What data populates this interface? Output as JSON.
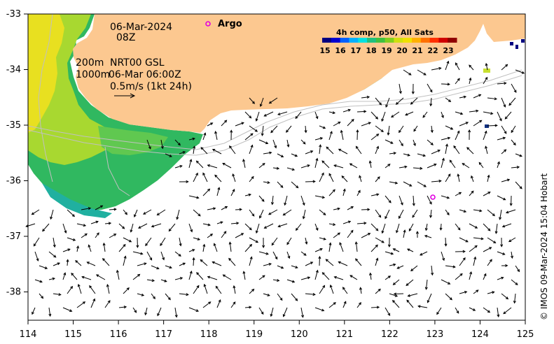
{
  "map": {
    "date_line": "06-Mar-2024",
    "time_line": "08Z",
    "depth_line_1": "200m",
    "depth_line_2": "1000m",
    "product_line": "NRT00 GSL",
    "product_time": "06-Mar 06:00Z",
    "vector_scale_label": "0.5m/s (1kt 24h)",
    "argo_label": "Argo",
    "credit": "© IMOS 09-Mar-2024 15:04 Hobart",
    "x_ticks": [
      "114",
      "115",
      "116",
      "117",
      "118",
      "119",
      "120",
      "121",
      "122",
      "123",
      "124",
      "125"
    ],
    "y_ticks": [
      "-33",
      "-34",
      "-35",
      "-36",
      "-37",
      "-38"
    ],
    "land_color": "#fcc890",
    "argo_color": "#e000e0"
  },
  "colorbar": {
    "title": "4h comp, p50, All Sats",
    "ticks": [
      "15",
      "16",
      "17",
      "18",
      "19",
      "20",
      "21",
      "22",
      "23"
    ],
    "colors": [
      "#000080",
      "#0000d0",
      "#0060ff",
      "#00b0ff",
      "#00e0e0",
      "#20c080",
      "#40c040",
      "#80d020",
      "#d0e010",
      "#f0e000",
      "#ffb000",
      "#ff7000",
      "#ff3000",
      "#d00000",
      "#900000"
    ]
  }
}
